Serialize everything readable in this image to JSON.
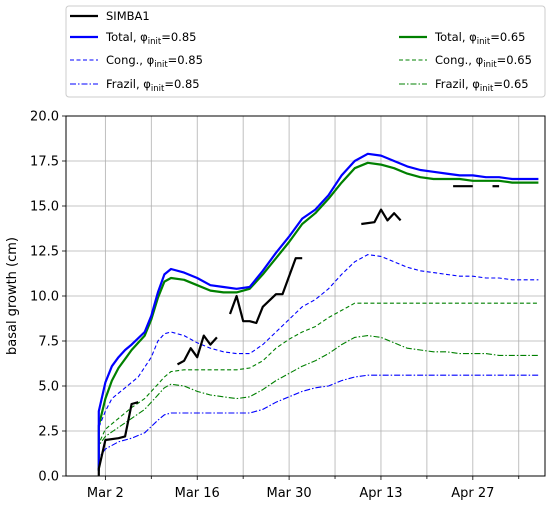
{
  "chart_data": {
    "type": "line",
    "ylabel": "basal growth (cm)",
    "xlabel": "",
    "ylim": [
      0,
      20
    ],
    "xlim": [
      "2019-02-24",
      "2019-05-08"
    ],
    "yticks": [
      0.0,
      2.5,
      5.0,
      7.5,
      10.0,
      12.5,
      15.0,
      17.5,
      20.0
    ],
    "ytick_labels": [
      "0.0",
      "2.5",
      "5.0",
      "7.5",
      "10.0",
      "12.5",
      "15.0",
      "17.5",
      "20.0"
    ],
    "xticks_labeled": [
      "2019-03-02",
      "2019-03-16",
      "2019-03-30",
      "2019-04-13",
      "2019-04-27"
    ],
    "xtick_labels": [
      "Mar 2",
      "Mar 16",
      "Mar 30",
      "Apr 13",
      "Apr 27"
    ],
    "xticks_minor": [
      "2019-03-09",
      "2019-03-23",
      "2019-04-06",
      "2019-04-20",
      "2019-05-04"
    ],
    "grid": true,
    "legend_position": "top, above plot",
    "legend": [
      {
        "label_main": "SIMBA1",
        "label_sub": "",
        "label_rest": ""
      },
      {
        "label_main": "Total, φ",
        "label_sub": "init",
        "label_rest": "=0.85"
      },
      {
        "label_main": "Cong., φ",
        "label_sub": "init",
        "label_rest": "=0.85"
      },
      {
        "label_main": "Frazil, φ",
        "label_sub": "init",
        "label_rest": "=0.85"
      },
      {
        "label_main": "Total, φ",
        "label_sub": "init",
        "label_rest": "=0.65"
      },
      {
        "label_main": "Cong., φ",
        "label_sub": "init",
        "label_rest": "=0.65"
      },
      {
        "label_main": "Frazil, φ",
        "label_sub": "init",
        "label_rest": "=0.65"
      }
    ],
    "series": [
      {
        "name": "SIMBA1",
        "color": "#000000",
        "style": "solid",
        "segmented": true,
        "segments": [
          [
            [
              "2019-02-29",
              0.0
            ],
            [
              "2019-03-01",
              0.4
            ],
            [
              "2019-03-02",
              2.0
            ],
            [
              "2019-03-04",
              2.1
            ],
            [
              "2019-03-05",
              2.2
            ],
            [
              "2019-03-06",
              4.0
            ],
            [
              "2019-03-07",
              4.1
            ]
          ],
          [
            [
              "2019-03-13",
              6.2
            ],
            [
              "2019-03-14",
              6.4
            ],
            [
              "2019-03-15",
              7.1
            ],
            [
              "2019-03-16",
              6.6
            ],
            [
              "2019-03-17",
              7.8
            ],
            [
              "2019-03-18",
              7.3
            ],
            [
              "2019-03-19",
              7.7
            ]
          ],
          [
            [
              "2019-03-21",
              9.0
            ],
            [
              "2019-03-22",
              10.0
            ],
            [
              "2019-03-23",
              8.6
            ],
            [
              "2019-03-24",
              8.6
            ],
            [
              "2019-03-25",
              8.5
            ],
            [
              "2019-03-26",
              9.4
            ],
            [
              "2019-03-28",
              10.1
            ],
            [
              "2019-03-29",
              10.1
            ],
            [
              "2019-03-31",
              12.1
            ],
            [
              "2019-04-01",
              12.1
            ]
          ],
          [
            [
              "2019-04-10",
              14.0
            ],
            [
              "2019-04-12",
              14.1
            ],
            [
              "2019-04-13",
              14.8
            ],
            [
              "2019-04-14",
              14.2
            ],
            [
              "2019-04-15",
              14.6
            ],
            [
              "2019-04-16",
              14.2
            ]
          ],
          [
            [
              "2019-04-24",
              16.1
            ],
            [
              "2019-04-25",
              16.1
            ],
            [
              "2019-04-27",
              16.1
            ]
          ],
          [
            [
              "2019-04-30",
              16.1
            ],
            [
              "2019-05-01",
              16.1
            ]
          ]
        ]
      },
      {
        "name": "Total, φinit=0.85",
        "color": "#0000ff",
        "style": "solid",
        "segmented": false,
        "points": [
          [
            "2019-02-29",
            0.3
          ],
          [
            "2019-03-01",
            3.6
          ],
          [
            "2019-03-02",
            5.2
          ],
          [
            "2019-03-03",
            6.1
          ],
          [
            "2019-03-04",
            6.6
          ],
          [
            "2019-03-05",
            7.0
          ],
          [
            "2019-03-06",
            7.3
          ],
          [
            "2019-03-08",
            8.0
          ],
          [
            "2019-03-09",
            8.9
          ],
          [
            "2019-03-10",
            10.2
          ],
          [
            "2019-03-11",
            11.2
          ],
          [
            "2019-03-12",
            11.5
          ],
          [
            "2019-03-14",
            11.3
          ],
          [
            "2019-03-16",
            11.0
          ],
          [
            "2019-03-18",
            10.6
          ],
          [
            "2019-03-20",
            10.5
          ],
          [
            "2019-03-22",
            10.4
          ],
          [
            "2019-03-24",
            10.5
          ],
          [
            "2019-03-26",
            11.4
          ],
          [
            "2019-03-28",
            12.4
          ],
          [
            "2019-03-30",
            13.3
          ],
          [
            "2019-04-01",
            14.3
          ],
          [
            "2019-04-03",
            14.8
          ],
          [
            "2019-04-05",
            15.6
          ],
          [
            "2019-04-07",
            16.7
          ],
          [
            "2019-04-09",
            17.5
          ],
          [
            "2019-04-11",
            17.9
          ],
          [
            "2019-04-13",
            17.8
          ],
          [
            "2019-04-15",
            17.5
          ],
          [
            "2019-04-17",
            17.2
          ],
          [
            "2019-04-19",
            17.0
          ],
          [
            "2019-04-21",
            16.9
          ],
          [
            "2019-04-23",
            16.8
          ],
          [
            "2019-04-25",
            16.7
          ],
          [
            "2019-04-27",
            16.7
          ],
          [
            "2019-04-29",
            16.6
          ],
          [
            "2019-05-01",
            16.6
          ],
          [
            "2019-05-03",
            16.5
          ],
          [
            "2019-05-05",
            16.5
          ],
          [
            "2019-05-07",
            16.5
          ]
        ]
      },
      {
        "name": "Cong., φinit=0.85",
        "color": "#0000ff",
        "style": "dashed",
        "segmented": false,
        "points": [
          [
            "2019-02-29",
            0.2
          ],
          [
            "2019-03-01",
            2.7
          ],
          [
            "2019-03-02",
            3.6
          ],
          [
            "2019-03-03",
            4.3
          ],
          [
            "2019-03-05",
            4.9
          ],
          [
            "2019-03-07",
            5.5
          ],
          [
            "2019-03-09",
            6.6
          ],
          [
            "2019-03-10",
            7.5
          ],
          [
            "2019-03-11",
            7.9
          ],
          [
            "2019-03-12",
            8.0
          ],
          [
            "2019-03-14",
            7.8
          ],
          [
            "2019-03-16",
            7.4
          ],
          [
            "2019-03-18",
            7.1
          ],
          [
            "2019-03-20",
            6.9
          ],
          [
            "2019-03-22",
            6.8
          ],
          [
            "2019-03-24",
            6.8
          ],
          [
            "2019-03-26",
            7.3
          ],
          [
            "2019-03-28",
            8.0
          ],
          [
            "2019-03-30",
            8.7
          ],
          [
            "2019-04-01",
            9.4
          ],
          [
            "2019-04-03",
            9.8
          ],
          [
            "2019-04-05",
            10.4
          ],
          [
            "2019-04-07",
            11.2
          ],
          [
            "2019-04-09",
            11.9
          ],
          [
            "2019-04-11",
            12.3
          ],
          [
            "2019-04-13",
            12.2
          ],
          [
            "2019-04-15",
            11.9
          ],
          [
            "2019-04-17",
            11.6
          ],
          [
            "2019-04-19",
            11.4
          ],
          [
            "2019-04-21",
            11.3
          ],
          [
            "2019-04-23",
            11.2
          ],
          [
            "2019-04-25",
            11.1
          ],
          [
            "2019-04-27",
            11.1
          ],
          [
            "2019-04-29",
            11.0
          ],
          [
            "2019-05-01",
            11.0
          ],
          [
            "2019-05-03",
            10.9
          ],
          [
            "2019-05-05",
            10.9
          ],
          [
            "2019-05-07",
            10.9
          ]
        ]
      },
      {
        "name": "Frazil, φinit=0.85",
        "color": "#0000ff",
        "style": "dashdot",
        "segmented": false,
        "points": [
          [
            "2019-02-29",
            0.1
          ],
          [
            "2019-03-01",
            1.0
          ],
          [
            "2019-03-02",
            1.5
          ],
          [
            "2019-03-04",
            1.9
          ],
          [
            "2019-03-06",
            2.1
          ],
          [
            "2019-03-08",
            2.4
          ],
          [
            "2019-03-10",
            3.1
          ],
          [
            "2019-03-11",
            3.4
          ],
          [
            "2019-03-12",
            3.5
          ],
          [
            "2019-03-16",
            3.5
          ],
          [
            "2019-03-20",
            3.5
          ],
          [
            "2019-03-24",
            3.5
          ],
          [
            "2019-03-26",
            3.7
          ],
          [
            "2019-03-28",
            4.1
          ],
          [
            "2019-03-30",
            4.4
          ],
          [
            "2019-04-01",
            4.7
          ],
          [
            "2019-04-03",
            4.9
          ],
          [
            "2019-04-05",
            5.0
          ],
          [
            "2019-04-07",
            5.3
          ],
          [
            "2019-04-09",
            5.5
          ],
          [
            "2019-04-11",
            5.6
          ],
          [
            "2019-04-15",
            5.6
          ],
          [
            "2019-04-20",
            5.6
          ],
          [
            "2019-04-25",
            5.6
          ],
          [
            "2019-04-30",
            5.6
          ],
          [
            "2019-05-07",
            5.6
          ]
        ]
      },
      {
        "name": "Total, φinit=0.65",
        "color": "#008000",
        "style": "solid",
        "segmented": false,
        "points": [
          [
            "2019-02-29",
            0.3
          ],
          [
            "2019-03-01",
            2.8
          ],
          [
            "2019-03-02",
            4.3
          ],
          [
            "2019-03-03",
            5.3
          ],
          [
            "2019-03-04",
            6.0
          ],
          [
            "2019-03-05",
            6.5
          ],
          [
            "2019-03-06",
            7.0
          ],
          [
            "2019-03-08",
            7.8
          ],
          [
            "2019-03-09",
            8.7
          ],
          [
            "2019-03-10",
            9.9
          ],
          [
            "2019-03-11",
            10.8
          ],
          [
            "2019-03-12",
            11.0
          ],
          [
            "2019-03-14",
            10.9
          ],
          [
            "2019-03-16",
            10.6
          ],
          [
            "2019-03-18",
            10.3
          ],
          [
            "2019-03-20",
            10.2
          ],
          [
            "2019-03-22",
            10.2
          ],
          [
            "2019-03-24",
            10.4
          ],
          [
            "2019-03-26",
            11.2
          ],
          [
            "2019-03-28",
            12.1
          ],
          [
            "2019-03-30",
            13.0
          ],
          [
            "2019-04-01",
            14.0
          ],
          [
            "2019-04-03",
            14.6
          ],
          [
            "2019-04-05",
            15.4
          ],
          [
            "2019-04-07",
            16.3
          ],
          [
            "2019-04-09",
            17.1
          ],
          [
            "2019-04-11",
            17.4
          ],
          [
            "2019-04-13",
            17.3
          ],
          [
            "2019-04-15",
            17.1
          ],
          [
            "2019-04-17",
            16.8
          ],
          [
            "2019-04-19",
            16.6
          ],
          [
            "2019-04-21",
            16.5
          ],
          [
            "2019-04-23",
            16.5
          ],
          [
            "2019-04-25",
            16.5
          ],
          [
            "2019-04-27",
            16.4
          ],
          [
            "2019-04-29",
            16.4
          ],
          [
            "2019-05-01",
            16.4
          ],
          [
            "2019-05-03",
            16.3
          ],
          [
            "2019-05-05",
            16.3
          ],
          [
            "2019-05-07",
            16.3
          ]
        ]
      },
      {
        "name": "Cong., φinit=0.65",
        "color": "#008000",
        "style": "dashed",
        "segmented": false,
        "points": [
          [
            "2019-02-29",
            0.2
          ],
          [
            "2019-03-01",
            1.8
          ],
          [
            "2019-03-02",
            2.6
          ],
          [
            "2019-03-04",
            3.2
          ],
          [
            "2019-03-06",
            3.8
          ],
          [
            "2019-03-08",
            4.3
          ],
          [
            "2019-03-10",
            5.1
          ],
          [
            "2019-03-11",
            5.5
          ],
          [
            "2019-03-12",
            5.8
          ],
          [
            "2019-03-14",
            5.9
          ],
          [
            "2019-03-18",
            5.9
          ],
          [
            "2019-03-22",
            5.9
          ],
          [
            "2019-03-24",
            6.0
          ],
          [
            "2019-03-26",
            6.4
          ],
          [
            "2019-03-28",
            7.1
          ],
          [
            "2019-03-30",
            7.6
          ],
          [
            "2019-04-01",
            8.0
          ],
          [
            "2019-04-03",
            8.3
          ],
          [
            "2019-04-05",
            8.8
          ],
          [
            "2019-04-07",
            9.2
          ],
          [
            "2019-04-09",
            9.6
          ],
          [
            "2019-04-11",
            9.6
          ],
          [
            "2019-04-15",
            9.6
          ],
          [
            "2019-04-20",
            9.6
          ],
          [
            "2019-04-25",
            9.6
          ],
          [
            "2019-04-30",
            9.6
          ],
          [
            "2019-05-07",
            9.6
          ]
        ]
      },
      {
        "name": "Frazil, φinit=0.65",
        "color": "#008000",
        "style": "dashdot",
        "segmented": false,
        "points": [
          [
            "2019-02-29",
            0.1
          ],
          [
            "2019-03-01",
            1.7
          ],
          [
            "2019-03-02",
            2.2
          ],
          [
            "2019-03-04",
            2.7
          ],
          [
            "2019-03-06",
            3.2
          ],
          [
            "2019-03-08",
            3.7
          ],
          [
            "2019-03-10",
            4.5
          ],
          [
            "2019-03-11",
            4.9
          ],
          [
            "2019-03-12",
            5.1
          ],
          [
            "2019-03-14",
            5.0
          ],
          [
            "2019-03-16",
            4.7
          ],
          [
            "2019-03-18",
            4.5
          ],
          [
            "2019-03-20",
            4.4
          ],
          [
            "2019-03-22",
            4.3
          ],
          [
            "2019-03-24",
            4.4
          ],
          [
            "2019-03-26",
            4.8
          ],
          [
            "2019-03-28",
            5.3
          ],
          [
            "2019-03-30",
            5.7
          ],
          [
            "2019-04-01",
            6.1
          ],
          [
            "2019-04-03",
            6.4
          ],
          [
            "2019-04-05",
            6.8
          ],
          [
            "2019-04-07",
            7.3
          ],
          [
            "2019-04-09",
            7.7
          ],
          [
            "2019-04-11",
            7.8
          ],
          [
            "2019-04-13",
            7.7
          ],
          [
            "2019-04-15",
            7.4
          ],
          [
            "2019-04-17",
            7.1
          ],
          [
            "2019-04-19",
            7.0
          ],
          [
            "2019-04-21",
            6.9
          ],
          [
            "2019-04-23",
            6.9
          ],
          [
            "2019-04-25",
            6.8
          ],
          [
            "2019-04-27",
            6.8
          ],
          [
            "2019-04-29",
            6.8
          ],
          [
            "2019-05-01",
            6.7
          ],
          [
            "2019-05-03",
            6.7
          ],
          [
            "2019-05-05",
            6.7
          ],
          [
            "2019-05-07",
            6.7
          ]
        ]
      }
    ]
  }
}
